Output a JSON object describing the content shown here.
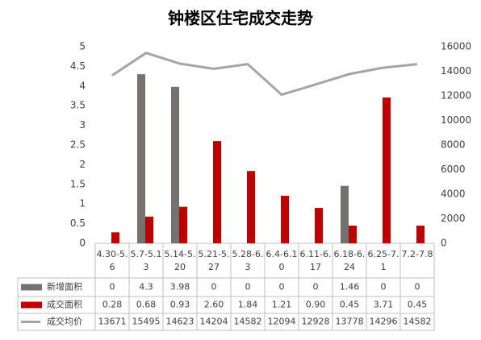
{
  "chart_data": {
    "type": "bar",
    "title": "钟楼区住宅成交走势",
    "categories": [
      "4.30-5.6",
      "5.7-5.13",
      "5.14-5.20",
      "5.21-5.27",
      "5.28-6.3",
      "6.4-6.10",
      "6.11-6.17",
      "6.18-6.24",
      "6.25-7.1",
      "7.2-7.8"
    ],
    "series": [
      {
        "name": "新增面积",
        "color": "#767171",
        "values": [
          0,
          4.3,
          3.98,
          0,
          0,
          0,
          0,
          1.46,
          0,
          0
        ]
      },
      {
        "name": "成交面积",
        "color": "#c00000",
        "values": [
          0.28,
          0.68,
          0.93,
          2.6,
          1.84,
          1.21,
          0.9,
          0.45,
          3.71,
          0.45
        ],
        "value_labels": [
          "0.28",
          "0.68",
          "0.93",
          "2.60",
          "1.84",
          "1.21",
          "0.90",
          "0.45",
          "3.71",
          "0.45"
        ]
      },
      {
        "name": "成交均价",
        "type": "line",
        "axis": "y2",
        "color": "#a5a5a5",
        "values": [
          13671,
          15495,
          14623,
          14204,
          14582,
          12094,
          12928,
          13778,
          14296,
          14582
        ]
      }
    ],
    "ylim": [
      0,
      5
    ],
    "yticks": [
      0,
      0.5,
      1,
      1.5,
      2,
      2.5,
      3,
      3.5,
      4,
      4.5,
      5
    ],
    "y2lim": [
      0,
      16000
    ],
    "y2ticks": [
      0,
      2000,
      4000,
      6000,
      8000,
      10000,
      12000,
      14000,
      16000
    ]
  }
}
